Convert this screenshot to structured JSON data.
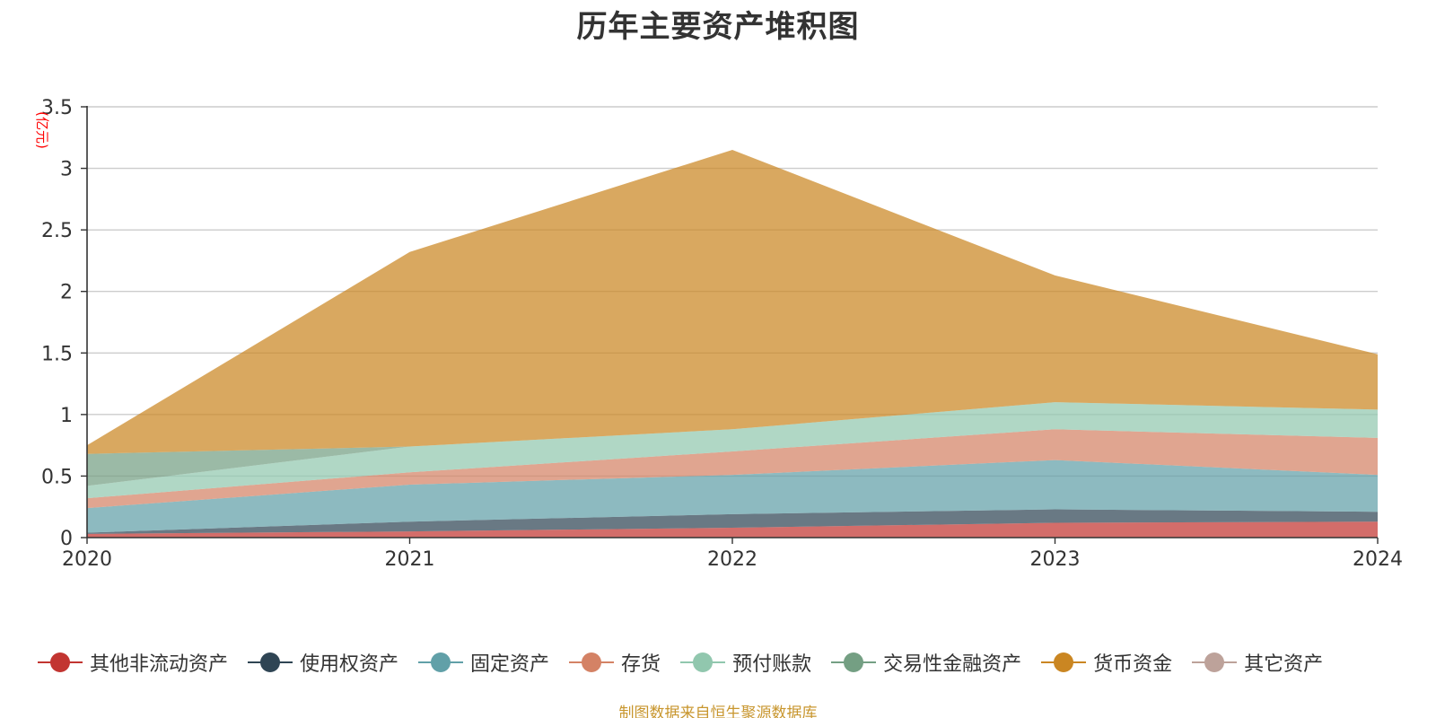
{
  "chart_data": {
    "type": "area",
    "stacked": true,
    "title": "历年主要资产堆积图",
    "ylabel": "(亿元)",
    "x": [
      "2020",
      "2021",
      "2022",
      "2023",
      "2024"
    ],
    "ylim": [
      0,
      3.5
    ],
    "yticks": [
      "0",
      "0.5",
      "1",
      "1.5",
      "2",
      "2.5",
      "3",
      "3.5"
    ],
    "grid": true,
    "legend_position": "bottom",
    "series": [
      {
        "name": "其他非流动资产",
        "color": "#c23531",
        "values": [
          0.03,
          0.05,
          0.08,
          0.12,
          0.13
        ]
      },
      {
        "name": "使用权资产",
        "color": "#2f4554",
        "values": [
          0.01,
          0.08,
          0.11,
          0.11,
          0.08
        ]
      },
      {
        "name": "固定资产",
        "color": "#61a0a8",
        "values": [
          0.2,
          0.3,
          0.32,
          0.4,
          0.3
        ]
      },
      {
        "name": "存货",
        "color": "#d48265",
        "values": [
          0.08,
          0.1,
          0.19,
          0.25,
          0.3
        ]
      },
      {
        "name": "预付账款",
        "color": "#91c7ae",
        "values": [
          0.1,
          0.21,
          0.18,
          0.22,
          0.23
        ]
      },
      {
        "name": "交易性金融资产",
        "color": "#749f83",
        "values": [
          0.26,
          0,
          0,
          0,
          0
        ]
      },
      {
        "name": "货币资金",
        "color": "#ca8622",
        "values": [
          0.07,
          1.58,
          2.27,
          1.03,
          0.45
        ]
      },
      {
        "name": "其它资产",
        "color": "#bda29a",
        "values": [
          0,
          0,
          0,
          0,
          0
        ]
      }
    ]
  },
  "source_note": "制图数据来自恒生聚源数据库"
}
